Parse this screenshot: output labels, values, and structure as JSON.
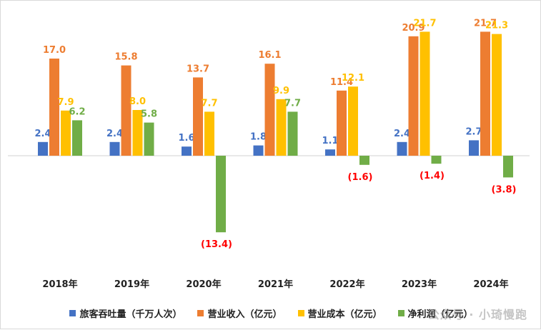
{
  "chart_data": {
    "type": "bar",
    "categories": [
      "2018年",
      "2019年",
      "2020年",
      "2021年",
      "2022年",
      "2023年",
      "2024年"
    ],
    "series": [
      {
        "name": "旅客吞吐量（千万人次）",
        "color": "#4472C4",
        "values": [
          2.4,
          2.4,
          1.6,
          1.8,
          1.1,
          2.4,
          2.7
        ],
        "labels": [
          "2.4",
          "2.4",
          "1.6",
          "1.8",
          "1.1",
          "2.4",
          "2.7"
        ]
      },
      {
        "name": "营业收入（亿元）",
        "color": "#ED7D31",
        "values": [
          17.0,
          15.8,
          13.7,
          16.1,
          11.4,
          20.9,
          21.7
        ],
        "labels": [
          "17.0",
          "15.8",
          "13.7",
          "16.1",
          "11.4",
          "20.9",
          "21.7"
        ]
      },
      {
        "name": "营业成本（亿元）",
        "color": "#FFC000",
        "values": [
          7.9,
          8.0,
          7.7,
          9.9,
          12.1,
          21.7,
          21.3
        ],
        "labels": [
          "7.9",
          "8.0",
          "7.7",
          "9.9",
          "12.1",
          "21.7",
          "21.3"
        ]
      },
      {
        "name": "净利润（亿元）",
        "color": "#70AD47",
        "values": [
          6.2,
          5.8,
          -13.4,
          7.7,
          -1.6,
          -1.4,
          -3.8
        ],
        "labels": [
          "6.2",
          "5.8",
          "(13.4)",
          "7.7",
          "(1.6)",
          "(1.4)",
          "(3.8)"
        ]
      }
    ],
    "negative_label_color": "#FF0000",
    "legend_position": "bottom",
    "grid": false
  },
  "watermark": "公众号 · 小琦慢跑"
}
